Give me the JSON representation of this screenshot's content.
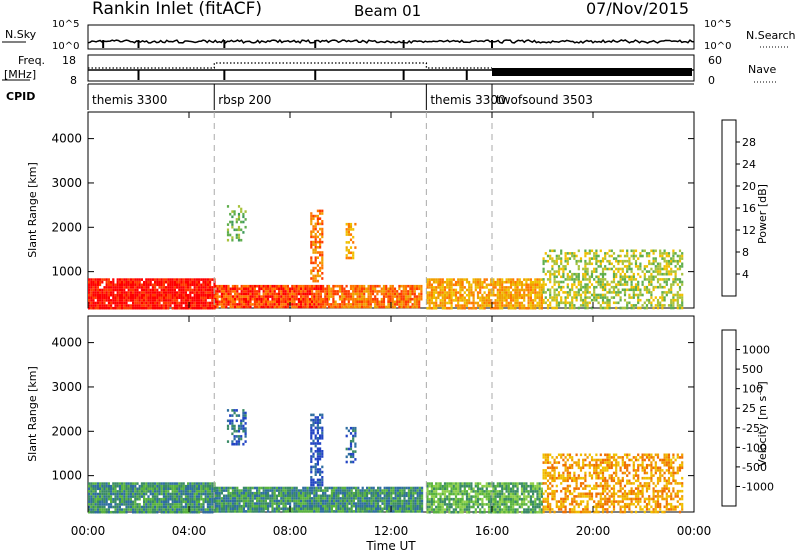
{
  "header": {
    "station": "Rankin Inlet (fitACF)",
    "beam": "Beam 01",
    "date": "07/Nov/2015"
  },
  "top_panels": {
    "nsky": {
      "left_label": "N.Sky",
      "left_ticks": [
        "10^5",
        "10^0"
      ],
      "right_label": "N.Search",
      "right_ticks": [
        "10^5",
        "10^0"
      ]
    },
    "freq": {
      "left_label": "Freq.",
      "left_unit": "[MHz]",
      "left_ticks": [
        "18",
        "8"
      ],
      "right_label": "Nave",
      "right_ticks": [
        "60",
        "0"
      ]
    },
    "cpid": {
      "label": "CPID",
      "segments": [
        {
          "name": "themis 3300",
          "start_hour": 0.0
        },
        {
          "name": "rbsp 200",
          "start_hour": 5.0
        },
        {
          "name": "themis 3300",
          "start_hour": 13.4
        },
        {
          "name": "twofsound 3503",
          "start_hour": 16.0
        }
      ]
    }
  },
  "axes": {
    "x_label": "Time UT",
    "x_ticks": [
      "00:00",
      "04:00",
      "08:00",
      "12:00",
      "16:00",
      "20:00",
      "00:00"
    ],
    "x_range_hours": [
      0,
      24
    ],
    "y_label": "Slant Range [km]",
    "y_ticks": [
      "1000",
      "2000",
      "3000",
      "4000"
    ],
    "y_range_km": [
      180,
      4600
    ]
  },
  "colorbars": {
    "power": {
      "label": "Power [dB]",
      "ticks": [
        "4",
        "8",
        "12",
        "16",
        "20",
        "24",
        "28"
      ],
      "colors": [
        "#0000ff",
        "#1e3ca6",
        "#2a78b4",
        "#3f9a5a",
        "#5fae4c",
        "#a8c23c",
        "#f0c000",
        "#f0a000",
        "#ff7800",
        "#ff3c00",
        "#ff0000"
      ]
    },
    "velocity": {
      "label": "Velocity [m s⁻¹]",
      "ticks": [
        "1000",
        "500",
        "100",
        "25",
        "-25",
        "-100",
        "-500",
        "-1000"
      ],
      "colors": [
        "#2244c4",
        "#2f6ea0",
        "#3a8a66",
        "#58b33e",
        "#8ed04a",
        "#c8c8c8",
        "#c8c8c8",
        "#f0c000",
        "#f0a000",
        "#f07000",
        "#f04000",
        "#ff0000"
      ]
    }
  },
  "chart_data": {
    "type": "heatmap",
    "x_unit": "hours UT",
    "y_unit": "km",
    "dashed_markers_hours": [
      5.0,
      13.4,
      16.0
    ],
    "scatter_regions": [
      {
        "panel": "power",
        "t0": 0.0,
        "t1": 5.0,
        "r0": 200,
        "r1": 850,
        "level": 10,
        "density": 0.95
      },
      {
        "panel": "power",
        "t0": 5.0,
        "t1": 9.5,
        "r0": 200,
        "r1": 700,
        "level": 9,
        "density": 0.95
      },
      {
        "panel": "power",
        "t0": 9.5,
        "t1": 13.2,
        "r0": 200,
        "r1": 700,
        "level": 8,
        "density": 0.85
      },
      {
        "panel": "power",
        "t0": 13.4,
        "t1": 18.0,
        "r0": 200,
        "r1": 850,
        "level": 7,
        "density": 0.8
      },
      {
        "panel": "power",
        "t0": 18.0,
        "t1": 23.5,
        "r0": 200,
        "r1": 1500,
        "level": 5,
        "density": 0.55
      },
      {
        "panel": "power",
        "t0": 5.5,
        "t1": 6.2,
        "r0": 1700,
        "r1": 2500,
        "level": 4,
        "density": 0.45
      },
      {
        "panel": "power",
        "t0": 8.8,
        "t1": 9.3,
        "r0": 800,
        "r1": 2400,
        "level": 8,
        "density": 0.6
      },
      {
        "panel": "power",
        "t0": 10.2,
        "t1": 10.6,
        "r0": 1300,
        "r1": 2100,
        "level": 7,
        "density": 0.5
      },
      {
        "panel": "velocity",
        "t0": 0.0,
        "t1": 5.0,
        "r0": 200,
        "r1": 850,
        "level": 2,
        "density": 0.95
      },
      {
        "panel": "velocity",
        "t0": 5.0,
        "t1": 13.2,
        "r0": 200,
        "r1": 750,
        "level": 2,
        "density": 0.95
      },
      {
        "panel": "velocity",
        "t0": 13.4,
        "t1": 18.0,
        "r0": 200,
        "r1": 850,
        "level": 3,
        "density": 0.8
      },
      {
        "panel": "velocity",
        "t0": 18.0,
        "t1": 23.5,
        "r0": 200,
        "r1": 1500,
        "level": 8,
        "density": 0.55
      },
      {
        "panel": "velocity",
        "t0": 5.5,
        "t1": 6.2,
        "r0": 1700,
        "r1": 2500,
        "level": 1,
        "density": 0.45
      },
      {
        "panel": "velocity",
        "t0": 8.8,
        "t1": 9.3,
        "r0": 800,
        "r1": 2400,
        "level": 0,
        "density": 0.6
      },
      {
        "panel": "velocity",
        "t0": 10.2,
        "t1": 10.6,
        "r0": 1300,
        "r1": 2100,
        "level": 1,
        "density": 0.5
      }
    ]
  }
}
